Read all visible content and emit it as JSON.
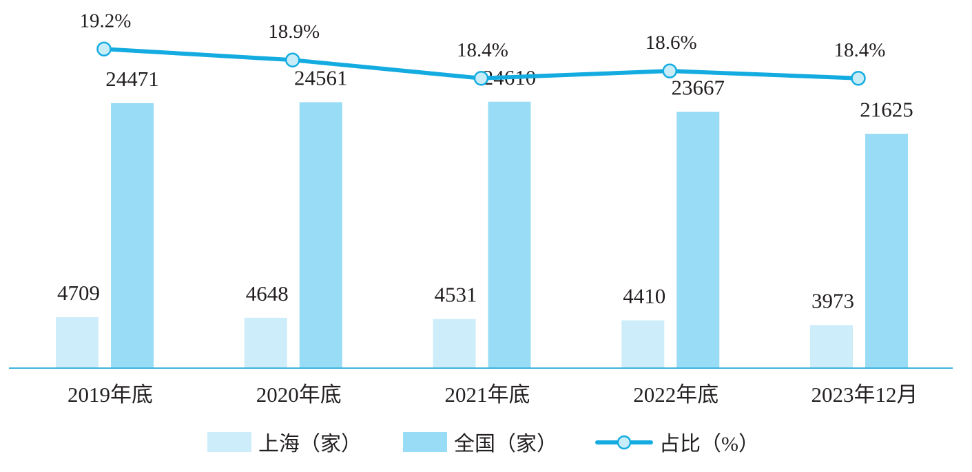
{
  "colors": {
    "shanghai_bar": "#ccedf9",
    "national_bar": "#99dcf5",
    "ratio_line": "#14ace0",
    "ratio_marker_fill": "#c9ecf9",
    "axis": "#3cb4de"
  },
  "chart_data": {
    "type": "bar",
    "categories": [
      "2019年底",
      "2020年底",
      "2021年底",
      "2022年底",
      "2023年12月"
    ],
    "series": [
      {
        "name": "上海（家）",
        "type": "bar",
        "values": [
          4709,
          4648,
          4531,
          4410,
          3973
        ]
      },
      {
        "name": "全国（家）",
        "type": "bar",
        "values": [
          24471,
          24561,
          24610,
          23667,
          21625
        ]
      },
      {
        "name": "占比（%）",
        "type": "line",
        "values": [
          19.2,
          18.9,
          18.4,
          18.6,
          18.4
        ],
        "labels": [
          "19.2%",
          "18.9%",
          "18.4%",
          "18.6%",
          "18.4%"
        ]
      }
    ],
    "ylim": [
      0,
      34000
    ],
    "ratio_ylim": [
      18.0,
      19.6
    ],
    "grid": false,
    "legend_position": "bottom-center"
  }
}
